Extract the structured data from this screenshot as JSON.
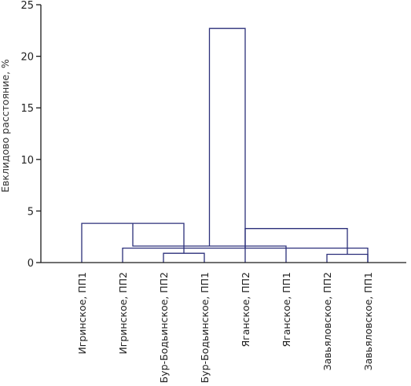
{
  "chart_data": {
    "type": "dendrogram",
    "ylabel": "Евклидово расстояние, %",
    "ylim": [
      0,
      25
    ],
    "yticks": [
      0,
      5,
      10,
      15,
      20,
      25
    ],
    "leaves": [
      "Игринское, ПП1",
      "Игринское, ПП2",
      "Бур-Бодьинское, ПП2",
      "Бур-Бодьинское, ПП1",
      "Яганское, ПП2",
      "Яганское, ПП1",
      "Завьяловское, ПП2",
      "Завьяловское, ПП1"
    ],
    "merges": [
      {
        "left": 3,
        "right": 4,
        "height": 0.9
      },
      {
        "left": 2,
        "right": 8,
        "height": 1.4
      },
      {
        "left": 1,
        "right": 9,
        "height": 3.8
      },
      {
        "left": 7,
        "right": 8,
        "height": 0.8
      },
      {
        "left": 6,
        "right": 11,
        "height": 1.6
      },
      {
        "left": 5,
        "right": 12,
        "height": 3.3
      },
      {
        "left": 10,
        "right": 13,
        "height": 22.7
      }
    ],
    "colors": {
      "link": "#2b2f7a",
      "axis": "#1a1a1a"
    }
  }
}
